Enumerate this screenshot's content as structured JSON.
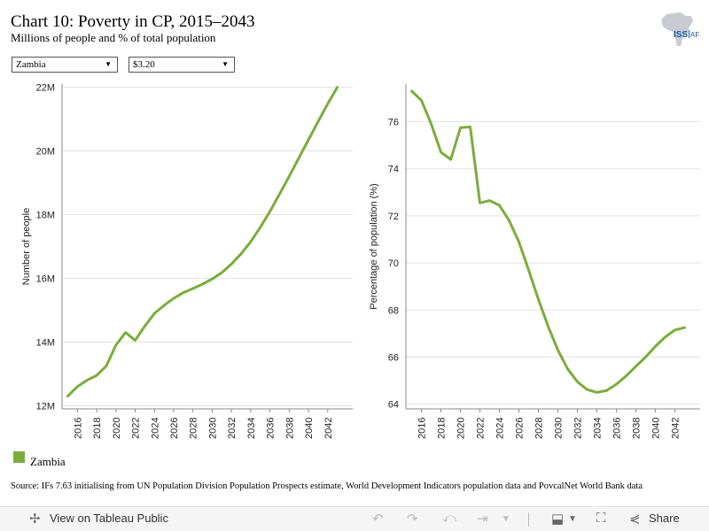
{
  "header": {
    "title": "Chart 10: Poverty in CP, 2015–2043",
    "subtitle": "Millions of people and % of total population",
    "logo_text": "ISS|AF"
  },
  "filters": {
    "country": "Zambia",
    "poverty_line": "$3.20"
  },
  "colors": {
    "series": "#7aad3b",
    "grid": "#e3e3e3",
    "axis": "#888888"
  },
  "chart_data": [
    {
      "type": "line",
      "ylabel": "Number of people",
      "ylim": [
        11.9,
        22.1
      ],
      "yticks": [
        12,
        14,
        16,
        18,
        20,
        22
      ],
      "ytick_labels": [
        "12M",
        "14M",
        "16M",
        "18M",
        "20M",
        "22M"
      ],
      "xticks": [
        2016,
        2018,
        2020,
        2022,
        2024,
        2026,
        2028,
        2030,
        2032,
        2034,
        2036,
        2038,
        2040,
        2042
      ],
      "grid": true,
      "series": [
        {
          "name": "Zambia",
          "x": [
            2015,
            2016,
            2017,
            2018,
            2019,
            2020,
            2021,
            2022,
            2023,
            2024,
            2025,
            2026,
            2027,
            2028,
            2029,
            2030,
            2031,
            2032,
            2033,
            2034,
            2035,
            2036,
            2037,
            2038,
            2039,
            2040,
            2041,
            2042,
            2043
          ],
          "values": [
            12.3,
            12.6,
            12.8,
            12.95,
            13.25,
            13.9,
            14.3,
            14.05,
            14.5,
            14.9,
            15.15,
            15.37,
            15.55,
            15.68,
            15.82,
            15.98,
            16.18,
            16.45,
            16.77,
            17.15,
            17.6,
            18.1,
            18.65,
            19.2,
            19.78,
            20.35,
            20.92,
            21.48,
            22.0
          ]
        }
      ]
    },
    {
      "type": "line",
      "ylabel": "Percentage of population (%)",
      "ylim": [
        63.8,
        77.6
      ],
      "yticks": [
        64,
        66,
        68,
        70,
        72,
        74,
        76
      ],
      "ytick_labels": [
        "64",
        "66",
        "68",
        "70",
        "72",
        "74",
        "76"
      ],
      "xticks": [
        2016,
        2018,
        2020,
        2022,
        2024,
        2026,
        2028,
        2030,
        2032,
        2034,
        2036,
        2038,
        2040,
        2042
      ],
      "grid": true,
      "series": [
        {
          "name": "Zambia",
          "x": [
            2015,
            2016,
            2017,
            2018,
            2019,
            2020,
            2021,
            2022,
            2023,
            2024,
            2025,
            2026,
            2027,
            2028,
            2029,
            2030,
            2031,
            2032,
            2033,
            2034,
            2035,
            2036,
            2037,
            2038,
            2039,
            2040,
            2041,
            2042,
            2043
          ],
          "values": [
            77.3,
            76.9,
            75.9,
            74.7,
            74.4,
            75.75,
            75.78,
            72.55,
            72.65,
            72.45,
            71.8,
            70.9,
            69.7,
            68.45,
            67.3,
            66.3,
            65.5,
            64.95,
            64.62,
            64.5,
            64.58,
            64.85,
            65.2,
            65.6,
            66.0,
            66.45,
            66.85,
            67.15,
            67.25
          ]
        }
      ]
    }
  ],
  "legend": {
    "label": "Zambia"
  },
  "source": "Source: IFs 7.63 initialising from UN Population Division Population Prospects estimate, World Development Indicators population data and PovcalNet World Bank data",
  "toolbar": {
    "view_label": "View on Tableau Public",
    "share_label": "Share",
    "icons": [
      "undo-icon",
      "redo-icon",
      "revert-icon",
      "refresh-icon",
      "download-icon",
      "fullscreen-icon",
      "share-icon"
    ]
  }
}
